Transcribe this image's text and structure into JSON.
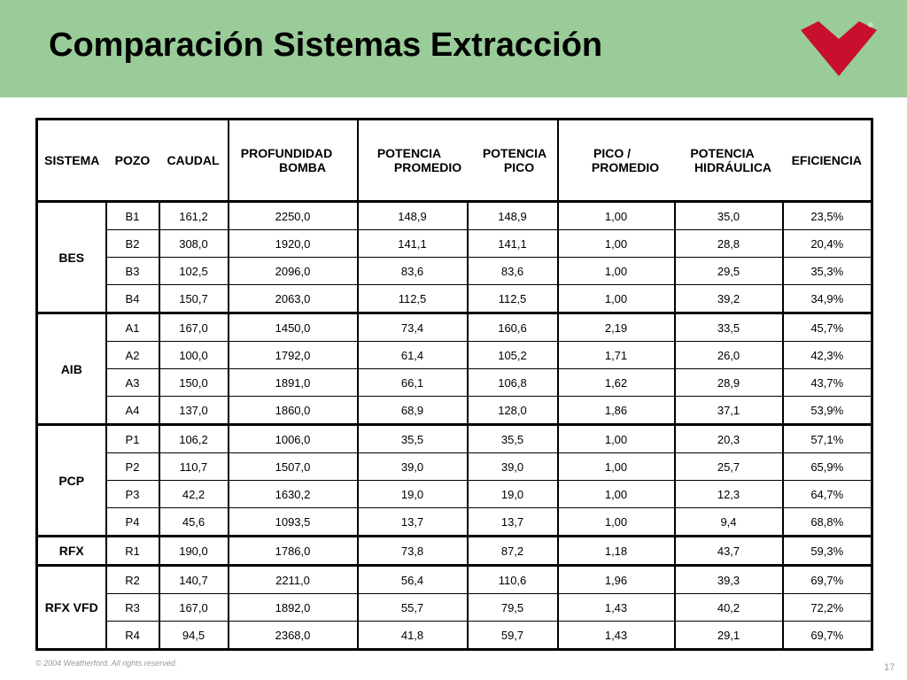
{
  "title": "Comparación Sistemas Extracción",
  "logo_registered": "®",
  "table": {
    "headers": {
      "sistema": "SISTEMA",
      "pozo": "POZO",
      "caudal": "CAUDAL",
      "profundidad_1": "PROFUNDIDAD",
      "profundidad_2": "BOMBA",
      "pot_prom_1": "POTENCIA",
      "pot_prom_2": "PROMEDIO",
      "pot_pico_1": "POTENCIA",
      "pot_pico_2": "PICO",
      "pico_prom_1": "PICO /",
      "pico_prom_2": "PROMEDIO",
      "pot_hid_1": "POTENCIA",
      "pot_hid_2": "HIDRÁULICA",
      "eficiencia": "EFICIENCIA"
    },
    "groups": [
      {
        "sistema": "BES",
        "rows": [
          [
            "B1",
            "161,2",
            "2250,0",
            "148,9",
            "148,9",
            "1,00",
            "35,0",
            "23,5%"
          ],
          [
            "B2",
            "308,0",
            "1920,0",
            "141,1",
            "141,1",
            "1,00",
            "28,8",
            "20,4%"
          ],
          [
            "B3",
            "102,5",
            "2096,0",
            "83,6",
            "83,6",
            "1,00",
            "29,5",
            "35,3%"
          ],
          [
            "B4",
            "150,7",
            "2063,0",
            "112,5",
            "112,5",
            "1,00",
            "39,2",
            "34,9%"
          ]
        ]
      },
      {
        "sistema": "AIB",
        "rows": [
          [
            "A1",
            "167,0",
            "1450,0",
            "73,4",
            "160,6",
            "2,19",
            "33,5",
            "45,7%"
          ],
          [
            "A2",
            "100,0",
            "1792,0",
            "61,4",
            "105,2",
            "1,71",
            "26,0",
            "42,3%"
          ],
          [
            "A3",
            "150,0",
            "1891,0",
            "66,1",
            "106,8",
            "1,62",
            "28,9",
            "43,7%"
          ],
          [
            "A4",
            "137,0",
            "1860,0",
            "68,9",
            "128,0",
            "1,86",
            "37,1",
            "53,9%"
          ]
        ]
      },
      {
        "sistema": "PCP",
        "rows": [
          [
            "P1",
            "106,2",
            "1006,0",
            "35,5",
            "35,5",
            "1,00",
            "20,3",
            "57,1%"
          ],
          [
            "P2",
            "110,7",
            "1507,0",
            "39,0",
            "39,0",
            "1,00",
            "25,7",
            "65,9%"
          ],
          [
            "P3",
            "42,2",
            "1630,2",
            "19,0",
            "19,0",
            "1,00",
            "12,3",
            "64,7%"
          ],
          [
            "P4",
            "45,6",
            "1093,5",
            "13,7",
            "13,7",
            "1,00",
            "9,4",
            "68,8%"
          ]
        ]
      },
      {
        "sistema": "RFX",
        "rows": [
          [
            "R1",
            "190,0",
            "1786,0",
            "73,8",
            "87,2",
            "1,18",
            "43,7",
            "59,3%"
          ]
        ]
      },
      {
        "sistema": "RFX VFD",
        "rows": [
          [
            "R2",
            "140,7",
            "2211,0",
            "56,4",
            "110,6",
            "1,96",
            "39,3",
            "69,7%"
          ],
          [
            "R3",
            "167,0",
            "1892,0",
            "55,7",
            "79,5",
            "1,43",
            "40,2",
            "72,2%"
          ],
          [
            "R4",
            "94,5",
            "2368,0",
            "41,8",
            "59,7",
            "1,43",
            "29,1",
            "69,7%"
          ]
        ]
      }
    ]
  },
  "footer": {
    "copyright": "© 2004 Weatherford. All rights reserved.",
    "page": "17"
  },
  "colors": {
    "header_bg": "#99cc99",
    "logo": "#c8102e"
  }
}
